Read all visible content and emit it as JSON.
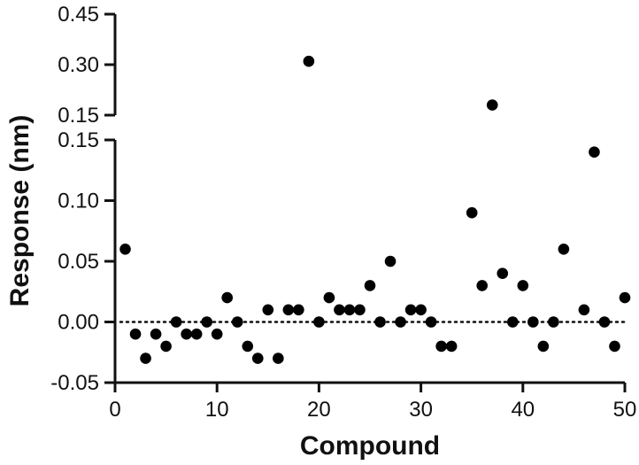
{
  "chart_data": {
    "type": "scatter",
    "title": "",
    "xlabel": "Compound",
    "ylabel": "Response (nm)",
    "xlim": [
      0,
      50
    ],
    "x_ticks": [
      0,
      10,
      20,
      30,
      40,
      50
    ],
    "y_axis_broken": true,
    "y_lower_segment": {
      "ylim": [
        -0.05,
        0.15
      ],
      "ticks": [
        "-0.05",
        "0.00",
        "0.05",
        "0.10",
        "0.15"
      ]
    },
    "y_upper_segment": {
      "ylim": [
        0.15,
        0.45
      ],
      "ticks": [
        "0.15",
        "0.30",
        "0.45"
      ]
    },
    "reference_line": {
      "y": 0.0,
      "style": "dotted"
    },
    "grid": false,
    "legend": "none",
    "point_color": "#000000",
    "points": [
      {
        "x": 1,
        "y": 0.06
      },
      {
        "x": 2,
        "y": -0.01
      },
      {
        "x": 3,
        "y": -0.03
      },
      {
        "x": 4,
        "y": -0.01
      },
      {
        "x": 5,
        "y": -0.02
      },
      {
        "x": 6,
        "y": 0.0
      },
      {
        "x": 7,
        "y": -0.01
      },
      {
        "x": 8,
        "y": -0.01
      },
      {
        "x": 9,
        "y": 0.0
      },
      {
        "x": 10,
        "y": -0.01
      },
      {
        "x": 11,
        "y": 0.02
      },
      {
        "x": 12,
        "y": 0.0
      },
      {
        "x": 13,
        "y": -0.02
      },
      {
        "x": 14,
        "y": -0.03
      },
      {
        "x": 15,
        "y": 0.01
      },
      {
        "x": 16,
        "y": -0.03
      },
      {
        "x": 17,
        "y": 0.01
      },
      {
        "x": 18,
        "y": 0.01
      },
      {
        "x": 19,
        "y": 0.31
      },
      {
        "x": 20,
        "y": 0.0
      },
      {
        "x": 21,
        "y": 0.02
      },
      {
        "x": 22,
        "y": 0.01
      },
      {
        "x": 23,
        "y": 0.01
      },
      {
        "x": 24,
        "y": 0.01
      },
      {
        "x": 25,
        "y": 0.03
      },
      {
        "x": 26,
        "y": 0.0
      },
      {
        "x": 27,
        "y": 0.05
      },
      {
        "x": 28,
        "y": 0.0
      },
      {
        "x": 29,
        "y": 0.01
      },
      {
        "x": 30,
        "y": 0.01
      },
      {
        "x": 31,
        "y": 0.0
      },
      {
        "x": 32,
        "y": -0.02
      },
      {
        "x": 33,
        "y": -0.02
      },
      {
        "x": 35,
        "y": 0.09
      },
      {
        "x": 36,
        "y": 0.03
      },
      {
        "x": 37,
        "y": 0.18
      },
      {
        "x": 38,
        "y": 0.04
      },
      {
        "x": 39,
        "y": 0.0
      },
      {
        "x": 40,
        "y": 0.03
      },
      {
        "x": 41,
        "y": 0.0
      },
      {
        "x": 42,
        "y": -0.02
      },
      {
        "x": 43,
        "y": 0.0
      },
      {
        "x": 44,
        "y": 0.06
      },
      {
        "x": 46,
        "y": 0.01
      },
      {
        "x": 47,
        "y": 0.14
      },
      {
        "x": 48,
        "y": 0.0
      },
      {
        "x": 49,
        "y": -0.02
      },
      {
        "x": 50,
        "y": 0.02
      }
    ]
  }
}
